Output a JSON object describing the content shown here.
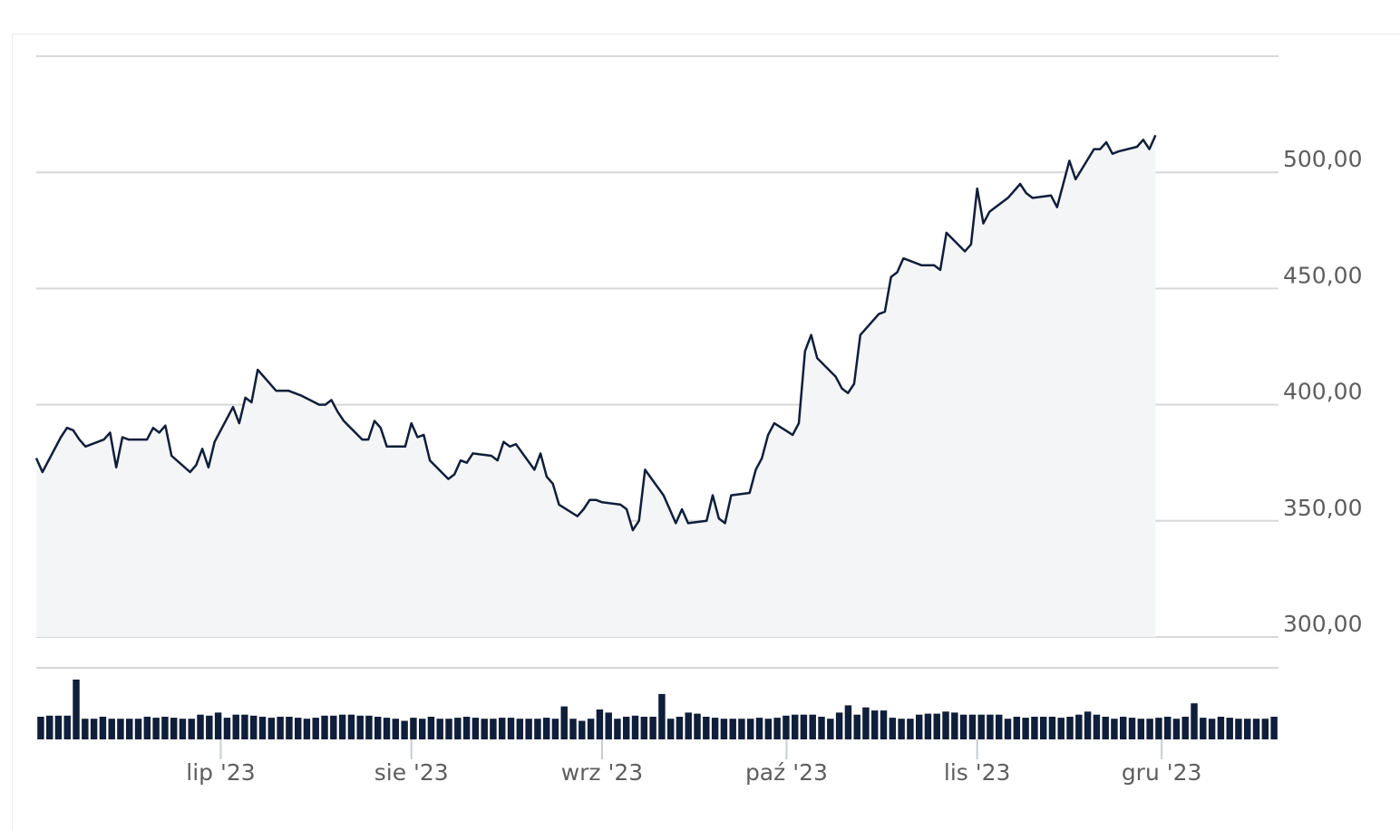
{
  "colors": {
    "line": "#0f1e3a",
    "area": "#f4f5f7",
    "grid": "#d7d7d7",
    "volume": "#0f1e3a",
    "tick_text": "#5e5e5e"
  },
  "chart_data": [
    {
      "type": "area",
      "title": "",
      "xlabel": "",
      "ylabel": "",
      "x_start": "2023-06-01",
      "x_end": "2023-12-20",
      "ylim": [
        300,
        550
      ],
      "grid": true,
      "y_axis_position": "right",
      "y_ticks": [
        {
          "value": 300,
          "label": "300,00"
        },
        {
          "value": 350,
          "label": "350,00"
        },
        {
          "value": 400,
          "label": "400,00"
        },
        {
          "value": 450,
          "label": "450,00"
        },
        {
          "value": 500,
          "label": "500,00"
        }
      ],
      "x_ticks": [
        {
          "date": "2023-07-01",
          "label": "lip '23"
        },
        {
          "date": "2023-08-01",
          "label": "sie '23"
        },
        {
          "date": "2023-09-01",
          "label": "wrz '23"
        },
        {
          "date": "2023-10-01",
          "label": "paź '23"
        },
        {
          "date": "2023-11-01",
          "label": "lis '23"
        },
        {
          "date": "2023-12-01",
          "label": "gru '23"
        }
      ],
      "series": [
        {
          "points": [
            [
              "2023-06-01",
              377
            ],
            [
              "2023-06-02",
              371
            ],
            [
              "2023-06-05",
              386
            ],
            [
              "2023-06-06",
              390
            ],
            [
              "2023-06-07",
              389
            ],
            [
              "2023-06-08",
              385
            ],
            [
              "2023-06-09",
              382
            ],
            [
              "2023-06-12",
              385
            ],
            [
              "2023-06-13",
              388
            ],
            [
              "2023-06-14",
              373
            ],
            [
              "2023-06-15",
              386
            ],
            [
              "2023-06-16",
              385
            ],
            [
              "2023-06-19",
              385
            ],
            [
              "2023-06-20",
              390
            ],
            [
              "2023-06-21",
              388
            ],
            [
              "2023-06-22",
              391
            ],
            [
              "2023-06-23",
              378
            ],
            [
              "2023-06-26",
              371
            ],
            [
              "2023-06-27",
              374
            ],
            [
              "2023-06-28",
              381
            ],
            [
              "2023-06-29",
              373
            ],
            [
              "2023-06-30",
              384
            ],
            [
              "2023-07-03",
              399
            ],
            [
              "2023-07-04",
              392
            ],
            [
              "2023-07-05",
              403
            ],
            [
              "2023-07-06",
              401
            ],
            [
              "2023-07-07",
              415
            ],
            [
              "2023-07-10",
              406
            ],
            [
              "2023-07-11",
              406
            ],
            [
              "2023-07-12",
              406
            ],
            [
              "2023-07-13",
              405
            ],
            [
              "2023-07-14",
              404
            ],
            [
              "2023-07-17",
              400
            ],
            [
              "2023-07-18",
              400
            ],
            [
              "2023-07-19",
              402
            ],
            [
              "2023-07-20",
              397
            ],
            [
              "2023-07-21",
              393
            ],
            [
              "2023-07-24",
              385
            ],
            [
              "2023-07-25",
              385
            ],
            [
              "2023-07-26",
              393
            ],
            [
              "2023-07-27",
              390
            ],
            [
              "2023-07-28",
              382
            ],
            [
              "2023-07-31",
              382
            ],
            [
              "2023-08-01",
              392
            ],
            [
              "2023-08-02",
              386
            ],
            [
              "2023-08-03",
              387
            ],
            [
              "2023-08-04",
              376
            ],
            [
              "2023-08-07",
              368
            ],
            [
              "2023-08-08",
              370
            ],
            [
              "2023-08-09",
              376
            ],
            [
              "2023-08-10",
              375
            ],
            [
              "2023-08-11",
              379
            ],
            [
              "2023-08-14",
              378
            ],
            [
              "2023-08-15",
              376
            ],
            [
              "2023-08-16",
              384
            ],
            [
              "2023-08-17",
              382
            ],
            [
              "2023-08-18",
              383
            ],
            [
              "2023-08-21",
              372
            ],
            [
              "2023-08-22",
              379
            ],
            [
              "2023-08-23",
              369
            ],
            [
              "2023-08-24",
              366
            ],
            [
              "2023-08-25",
              357
            ],
            [
              "2023-08-28",
              352
            ],
            [
              "2023-08-29",
              355
            ],
            [
              "2023-08-30",
              359
            ],
            [
              "2023-08-31",
              359
            ],
            [
              "2023-09-01",
              358
            ],
            [
              "2023-09-04",
              357
            ],
            [
              "2023-09-05",
              355
            ],
            [
              "2023-09-06",
              346
            ],
            [
              "2023-09-07",
              350
            ],
            [
              "2023-09-08",
              372
            ],
            [
              "2023-09-11",
              361
            ],
            [
              "2023-09-12",
              355
            ],
            [
              "2023-09-13",
              349
            ],
            [
              "2023-09-14",
              355
            ],
            [
              "2023-09-15",
              349
            ],
            [
              "2023-09-18",
              350
            ],
            [
              "2023-09-19",
              361
            ],
            [
              "2023-09-20",
              351
            ],
            [
              "2023-09-21",
              349
            ],
            [
              "2023-09-22",
              361
            ],
            [
              "2023-09-25",
              362
            ],
            [
              "2023-09-26",
              372
            ],
            [
              "2023-09-27",
              377
            ],
            [
              "2023-09-28",
              387
            ],
            [
              "2023-09-29",
              392
            ],
            [
              "2023-10-02",
              387
            ],
            [
              "2023-10-03",
              392
            ],
            [
              "2023-10-04",
              423
            ],
            [
              "2023-10-05",
              430
            ],
            [
              "2023-10-06",
              420
            ],
            [
              "2023-10-09",
              412
            ],
            [
              "2023-10-10",
              407
            ],
            [
              "2023-10-11",
              405
            ],
            [
              "2023-10-12",
              409
            ],
            [
              "2023-10-13",
              430
            ],
            [
              "2023-10-16",
              439
            ],
            [
              "2023-10-17",
              440
            ],
            [
              "2023-10-18",
              455
            ],
            [
              "2023-10-19",
              457
            ],
            [
              "2023-10-20",
              463
            ],
            [
              "2023-10-23",
              460
            ],
            [
              "2023-10-24",
              460
            ],
            [
              "2023-10-25",
              460
            ],
            [
              "2023-10-26",
              458
            ],
            [
              "2023-10-27",
              474
            ],
            [
              "2023-10-30",
              466
            ],
            [
              "2023-10-31",
              469
            ],
            [
              "2023-11-01",
              493
            ],
            [
              "2023-11-02",
              478
            ],
            [
              "2023-11-03",
              483
            ],
            [
              "2023-11-06",
              489
            ],
            [
              "2023-11-07",
              492
            ],
            [
              "2023-11-08",
              495
            ],
            [
              "2023-11-09",
              491
            ],
            [
              "2023-11-10",
              489
            ],
            [
              "2023-11-13",
              490
            ],
            [
              "2023-11-14",
              485
            ],
            [
              "2023-11-15",
              495
            ],
            [
              "2023-11-16",
              505
            ],
            [
              "2023-11-17",
              497
            ],
            [
              "2023-11-20",
              510
            ],
            [
              "2023-11-21",
              510
            ],
            [
              "2023-11-22",
              513
            ],
            [
              "2023-11-23",
              508
            ],
            [
              "2023-11-24",
              509
            ],
            [
              "2023-11-27",
              511
            ],
            [
              "2023-11-28",
              514
            ],
            [
              "2023-11-29",
              510
            ],
            [
              "2023-11-30",
              516
            ]
          ]
        }
      ]
    },
    {
      "type": "bar",
      "title": "",
      "description_role": "volume",
      "volume_bars": [
        22,
        23,
        23,
        23,
        58,
        20,
        20,
        22,
        20,
        20,
        20,
        20,
        22,
        21,
        22,
        21,
        20,
        20,
        24,
        23,
        26,
        21,
        24,
        24,
        23,
        22,
        21,
        22,
        22,
        21,
        20,
        21,
        23,
        23,
        24,
        24,
        23,
        23,
        22,
        21,
        20,
        18,
        21,
        20,
        22,
        20,
        20,
        21,
        22,
        21,
        20,
        20,
        21,
        21,
        20,
        20,
        20,
        21,
        20,
        32,
        20,
        18,
        20,
        29,
        26,
        20,
        22,
        23,
        22,
        22,
        44,
        20,
        22,
        26,
        25,
        22,
        21,
        20,
        20,
        20,
        20,
        21,
        20,
        21,
        23,
        24,
        24,
        24,
        22,
        20,
        26,
        33,
        24,
        31,
        28,
        28,
        21,
        20,
        20,
        24,
        25,
        25,
        27,
        26,
        24,
        24,
        24,
        24,
        24,
        20,
        22,
        21,
        22,
        22,
        22,
        21,
        22,
        24,
        27,
        24,
        22,
        20,
        22,
        21,
        20,
        20,
        21,
        22,
        20,
        22,
        35,
        21,
        20,
        22,
        21,
        20,
        20,
        20,
        20,
        22
      ]
    }
  ]
}
